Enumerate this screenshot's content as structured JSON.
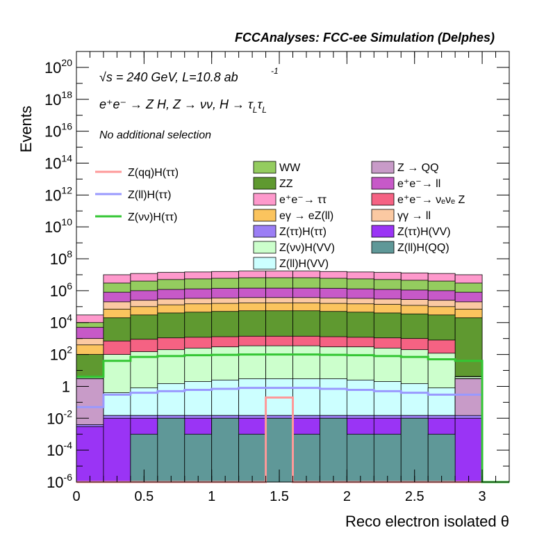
{
  "header": {
    "title": "FCCAnalyses: FCC-ee Simulation (Delphes)"
  },
  "annotations": {
    "energy": "√s = 240 GeV, L=10.8 ab",
    "energy_exp": "-1",
    "process": "e⁺e⁻ → Z H, Z → νν, H → τ",
    "process_sub1": "L",
    "process_tau2": "τ",
    "process_sub2": "L",
    "selection": "No additional selection"
  },
  "chart_data": {
    "type": "bar",
    "stacked": true,
    "log_y": true,
    "xlabel": "Reco electron isolated θ",
    "ylabel": "Events",
    "xlim": [
      0,
      3.2
    ],
    "ylim": [
      1e-06,
      1e+21
    ],
    "x_ticks": [
      "0",
      "0.5",
      "1",
      "1.5",
      "2",
      "2.5",
      "3"
    ],
    "y_ticks": [
      {
        "base": "10",
        "exp": "-6",
        "value": 1e-06
      },
      {
        "base": "10",
        "exp": "-4",
        "value": 0.0001
      },
      {
        "base": "10",
        "exp": "-2",
        "value": 0.01
      },
      {
        "base": "1",
        "exp": "",
        "value": 1
      },
      {
        "base": "10",
        "exp": "2",
        "value": 100.0
      },
      {
        "base": "10",
        "exp": "4",
        "value": 10000.0
      },
      {
        "base": "10",
        "exp": "6",
        "value": 1000000.0
      },
      {
        "base": "10",
        "exp": "8",
        "value": 100000000.0
      },
      {
        "base": "10",
        "exp": "10",
        "value": 10000000000.0
      },
      {
        "base": "10",
        "exp": "12",
        "value": 1000000000000.0
      },
      {
        "base": "10",
        "exp": "14",
        "value": 100000000000000.0
      },
      {
        "base": "10",
        "exp": "16",
        "value": 1e+16
      },
      {
        "base": "10",
        "exp": "18",
        "value": 1e+18
      },
      {
        "base": "10",
        "exp": "20",
        "value": 1e+20
      }
    ],
    "bin_edges": [
      0,
      0.2,
      0.4,
      0.6,
      0.8,
      1.0,
      1.2,
      1.4,
      1.6,
      1.8,
      2.0,
      2.2,
      2.4,
      2.6,
      2.8,
      3.0
    ],
    "stack_tops": [
      {
        "name": "Z(ll)H(QQ)",
        "color": "#5f9898",
        "values": [
          1e-06,
          1e-06,
          0.001,
          0.01,
          0.001,
          0.01,
          0.001,
          0.01,
          0.001,
          0.01,
          0.001,
          0.001,
          0.01,
          0.001,
          1e-06
        ]
      },
      {
        "name": "Z(ττ)H(VV)",
        "color": "#9a34f5",
        "values": [
          0.003,
          0.01,
          0.01,
          0.01,
          0.01,
          0.01,
          0.01,
          0.01,
          0.01,
          0.01,
          0.01,
          0.01,
          0.01,
          0.01,
          0.01
        ]
      },
      {
        "name": "Z(ττ)H(ττ)",
        "color": "#9b7ef5",
        "values": [
          0.004,
          0.015,
          0.015,
          0.015,
          0.015,
          0.015,
          0.015,
          0.015,
          0.015,
          0.015,
          0.015,
          0.015,
          0.015,
          0.015,
          0.015
        ]
      },
      {
        "name": "Z → QQ",
        "color": "#c89bc8",
        "values": [
          3.0,
          0.015,
          0.015,
          0.015,
          0.015,
          0.015,
          0.015,
          0.015,
          0.015,
          0.015,
          0.015,
          0.015,
          0.015,
          0.015,
          3.0
        ]
      },
      {
        "name": "Z(ll)H(VV)",
        "color": "#ccffff",
        "values": [
          3.1,
          0.4,
          0.8,
          1.5,
          2.0,
          2.5,
          3.0,
          3.0,
          3.0,
          3.0,
          2.5,
          2.0,
          1.5,
          0.8,
          3.1
        ]
      },
      {
        "name": "Z(νν)H(VV)",
        "color": "#ccffcc",
        "values": [
          4.0,
          100,
          150,
          200,
          250,
          300,
          350,
          350,
          350,
          300,
          300,
          250,
          200,
          120,
          4.0
        ]
      },
      {
        "name": "e⁺e⁻ → νₑνₑ Z",
        "color": "#f56283",
        "values": [
          4.2,
          700,
          900,
          1100,
          1200,
          1300,
          1400,
          1400,
          1400,
          1300,
          1200,
          1100,
          1000,
          800,
          4.2
        ]
      },
      {
        "name": "ZZ",
        "color": "#5f9930",
        "values": [
          100,
          20000,
          30000,
          40000,
          45000,
          50000,
          55000,
          55000,
          55000,
          50000,
          45000,
          40000,
          35000,
          30000,
          20000
        ]
      },
      {
        "name": "eγ → eZ(ll)",
        "color": "#fbc45e",
        "values": [
          400,
          70000,
          100000,
          130000,
          150000,
          160000,
          170000,
          170000,
          170000,
          160000,
          150000,
          140000,
          120000,
          100000,
          70000
        ]
      },
      {
        "name": "γγ → ll",
        "color": "#fbc9a2",
        "values": [
          1000,
          200000,
          250000,
          300000,
          330000,
          350000,
          370000,
          370000,
          370000,
          350000,
          330000,
          300000,
          280000,
          250000,
          200000
        ]
      },
      {
        "name": "e⁺e⁻ → ll",
        "color": "#c759c8",
        "values": [
          5000,
          800000,
          1000000,
          1200000,
          1300000,
          1400000,
          1450000,
          1450000,
          1450000,
          1400000,
          1300000,
          1200000,
          1100000,
          1000000,
          800000
        ]
      },
      {
        "name": "WW",
        "color": "#94cc5f",
        "values": [
          10000,
          3000000,
          4000000,
          5000000,
          5500000,
          6000000,
          6500000,
          6500000,
          6500000,
          6000000,
          5500000,
          5000000,
          4500000,
          4000000,
          3000000
        ]
      },
      {
        "name": "e⁺e⁻ → ττ",
        "color": "#fe99cc",
        "values": [
          30000,
          10000000,
          12000000,
          14000000,
          15000000,
          16000000,
          17000000,
          17000000,
          17000000,
          16000000,
          15000000,
          14000000,
          13000000,
          12000000,
          10000000
        ]
      }
    ],
    "legend_stack": [
      {
        "label": "WW",
        "color": "#94cc5f"
      },
      {
        "label": "Z → QQ",
        "color": "#c89bc8"
      },
      {
        "label": "ZZ",
        "color": "#5f9930"
      },
      {
        "label": "e⁺e⁻→ ll",
        "color": "#c759c8"
      },
      {
        "label": "e⁺e⁻→ ττ",
        "color": "#fe99cc"
      },
      {
        "label": "e⁺e⁻→ νₑνₑ Z",
        "color": "#f56283"
      },
      {
        "label": "eγ → eZ(ll)",
        "color": "#fbc45e"
      },
      {
        "label": "γγ → ll",
        "color": "#fbc9a2"
      },
      {
        "label": "Z(ττ)H(ττ)",
        "color": "#9b7ef5"
      },
      {
        "label": "Z(ττ)H(VV)",
        "color": "#9a34f5"
      },
      {
        "label": "Z(νν)H(VV)",
        "color": "#ccffcc"
      },
      {
        "label": "Z(ll)H(QQ)",
        "color": "#5f9898"
      },
      {
        "label": "Z(ll)H(VV)",
        "color": "#ccffff"
      }
    ],
    "signals": [
      {
        "name": "Z(qq)H(ττ)",
        "color": "#fe9999",
        "values": [
          1e-06,
          1e-06,
          1e-06,
          1e-06,
          1e-06,
          1e-06,
          1e-06,
          0.2,
          1e-06,
          1e-06,
          1e-06,
          1e-06,
          1e-06,
          1e-06,
          1e-06
        ]
      },
      {
        "name": "Z(ll)H(ττ)",
        "color": "#9999fe",
        "values": [
          0.05,
          0.3,
          0.4,
          0.5,
          0.6,
          0.7,
          0.8,
          0.8,
          0.8,
          0.7,
          0.6,
          0.5,
          0.4,
          0.3,
          0.3
        ]
      },
      {
        "name": "Z(νν)H(ττ)",
        "color": "#33c633",
        "values": [
          4,
          40,
          70,
          80,
          90,
          95,
          100,
          100,
          100,
          95,
          90,
          80,
          70,
          50,
          40
        ],
        "extra": {
          "x": [
            3.0,
            3.2
          ],
          "value": 1e-06
        }
      }
    ]
  }
}
